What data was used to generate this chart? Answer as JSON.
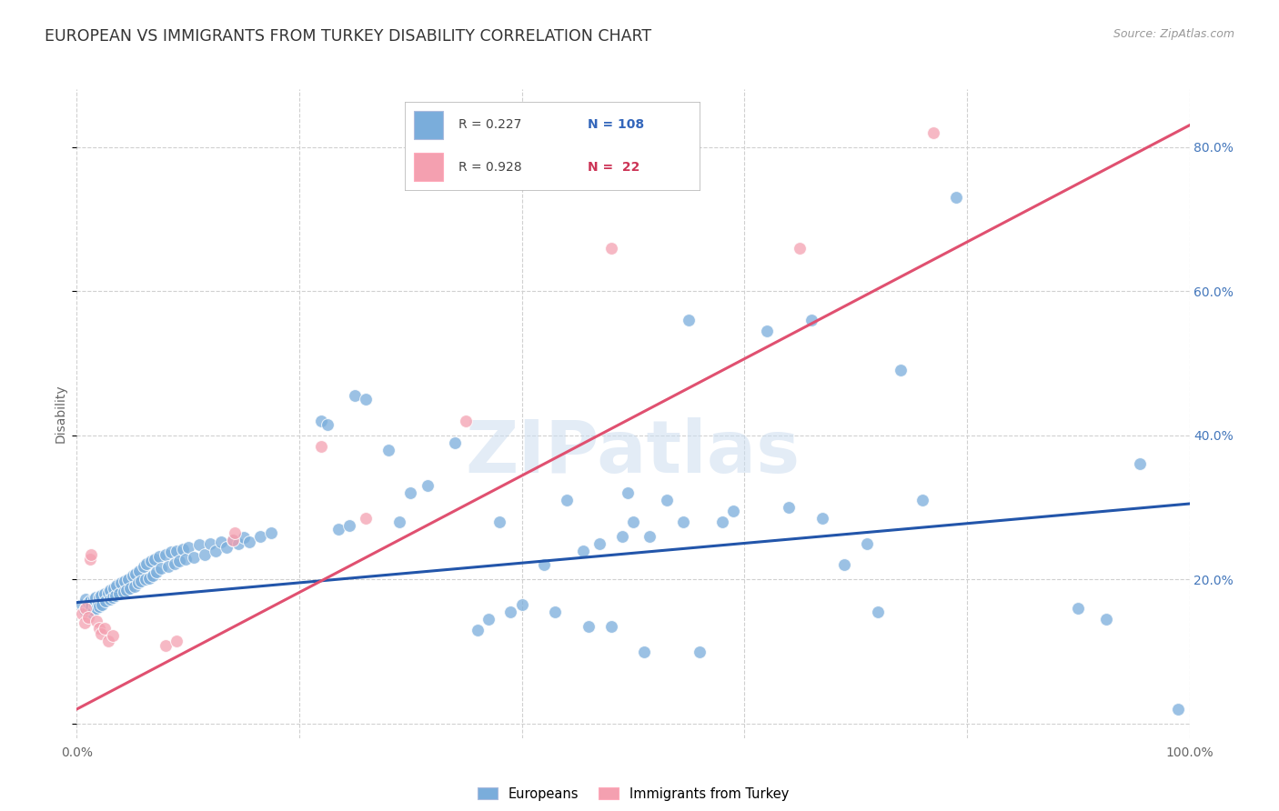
{
  "title": "EUROPEAN VS IMMIGRANTS FROM TURKEY DISABILITY CORRELATION CHART",
  "source": "Source: ZipAtlas.com",
  "ylabel": "Disability",
  "ytick_values": [
    0.0,
    0.2,
    0.4,
    0.6,
    0.8
  ],
  "ytick_labels": [
    "",
    "20.0%",
    "40.0%",
    "60.0%",
    "80.0%"
  ],
  "xlim": [
    0.0,
    1.0
  ],
  "ylim": [
    -0.02,
    0.88
  ],
  "background_color": "#ffffff",
  "grid_color": "#d0d0d0",
  "watermark_text": "ZIPatlas",
  "blue_color": "#7aaddb",
  "pink_color": "#f4a0b0",
  "blue_line_color": "#2255aa",
  "pink_line_color": "#e05070",
  "title_fontsize": 12.5,
  "axis_label_fontsize": 10,
  "tick_fontsize": 10,
  "source_fontsize": 9,
  "blue_line_x": [
    0.0,
    1.0
  ],
  "blue_line_y": [
    0.168,
    0.305
  ],
  "pink_line_x": [
    0.0,
    1.0
  ],
  "pink_line_y": [
    0.02,
    0.83
  ],
  "blue_scatter": [
    [
      0.005,
      0.165
    ],
    [
      0.007,
      0.158
    ],
    [
      0.008,
      0.172
    ],
    [
      0.01,
      0.16
    ],
    [
      0.01,
      0.168
    ],
    [
      0.012,
      0.155
    ],
    [
      0.012,
      0.17
    ],
    [
      0.013,
      0.162
    ],
    [
      0.015,
      0.158
    ],
    [
      0.015,
      0.172
    ],
    [
      0.016,
      0.165
    ],
    [
      0.017,
      0.175
    ],
    [
      0.018,
      0.16
    ],
    [
      0.019,
      0.168
    ],
    [
      0.02,
      0.175
    ],
    [
      0.02,
      0.162
    ],
    [
      0.022,
      0.178
    ],
    [
      0.023,
      0.165
    ],
    [
      0.025,
      0.18
    ],
    [
      0.026,
      0.17
    ],
    [
      0.028,
      0.182
    ],
    [
      0.03,
      0.172
    ],
    [
      0.03,
      0.185
    ],
    [
      0.032,
      0.175
    ],
    [
      0.033,
      0.188
    ],
    [
      0.035,
      0.178
    ],
    [
      0.036,
      0.192
    ],
    [
      0.038,
      0.18
    ],
    [
      0.04,
      0.195
    ],
    [
      0.042,
      0.183
    ],
    [
      0.043,
      0.198
    ],
    [
      0.045,
      0.185
    ],
    [
      0.046,
      0.2
    ],
    [
      0.048,
      0.188
    ],
    [
      0.05,
      0.205
    ],
    [
      0.052,
      0.19
    ],
    [
      0.053,
      0.208
    ],
    [
      0.055,
      0.195
    ],
    [
      0.056,
      0.212
    ],
    [
      0.058,
      0.198
    ],
    [
      0.06,
      0.218
    ],
    [
      0.062,
      0.2
    ],
    [
      0.063,
      0.222
    ],
    [
      0.065,
      0.202
    ],
    [
      0.067,
      0.225
    ],
    [
      0.068,
      0.205
    ],
    [
      0.07,
      0.228
    ],
    [
      0.072,
      0.21
    ],
    [
      0.074,
      0.232
    ],
    [
      0.076,
      0.215
    ],
    [
      0.08,
      0.235
    ],
    [
      0.082,
      0.218
    ],
    [
      0.085,
      0.238
    ],
    [
      0.088,
      0.222
    ],
    [
      0.09,
      0.24
    ],
    [
      0.092,
      0.225
    ],
    [
      0.095,
      0.242
    ],
    [
      0.098,
      0.228
    ],
    [
      0.1,
      0.245
    ],
    [
      0.105,
      0.23
    ],
    [
      0.11,
      0.248
    ],
    [
      0.115,
      0.235
    ],
    [
      0.12,
      0.25
    ],
    [
      0.125,
      0.24
    ],
    [
      0.13,
      0.252
    ],
    [
      0.135,
      0.245
    ],
    [
      0.14,
      0.255
    ],
    [
      0.145,
      0.25
    ],
    [
      0.15,
      0.258
    ],
    [
      0.155,
      0.252
    ],
    [
      0.165,
      0.26
    ],
    [
      0.175,
      0.265
    ],
    [
      0.22,
      0.42
    ],
    [
      0.225,
      0.415
    ],
    [
      0.235,
      0.27
    ],
    [
      0.245,
      0.275
    ],
    [
      0.25,
      0.455
    ],
    [
      0.26,
      0.45
    ],
    [
      0.28,
      0.38
    ],
    [
      0.29,
      0.28
    ],
    [
      0.3,
      0.32
    ],
    [
      0.315,
      0.33
    ],
    [
      0.34,
      0.39
    ],
    [
      0.36,
      0.13
    ],
    [
      0.37,
      0.145
    ],
    [
      0.38,
      0.28
    ],
    [
      0.39,
      0.155
    ],
    [
      0.4,
      0.165
    ],
    [
      0.42,
      0.22
    ],
    [
      0.43,
      0.155
    ],
    [
      0.44,
      0.31
    ],
    [
      0.455,
      0.24
    ],
    [
      0.46,
      0.135
    ],
    [
      0.47,
      0.25
    ],
    [
      0.48,
      0.135
    ],
    [
      0.49,
      0.26
    ],
    [
      0.495,
      0.32
    ],
    [
      0.5,
      0.28
    ],
    [
      0.51,
      0.1
    ],
    [
      0.515,
      0.26
    ],
    [
      0.53,
      0.31
    ],
    [
      0.545,
      0.28
    ],
    [
      0.55,
      0.56
    ],
    [
      0.56,
      0.1
    ],
    [
      0.58,
      0.28
    ],
    [
      0.59,
      0.295
    ],
    [
      0.62,
      0.545
    ],
    [
      0.64,
      0.3
    ],
    [
      0.66,
      0.56
    ],
    [
      0.67,
      0.285
    ],
    [
      0.69,
      0.22
    ],
    [
      0.71,
      0.25
    ],
    [
      0.72,
      0.155
    ],
    [
      0.74,
      0.49
    ],
    [
      0.76,
      0.31
    ],
    [
      0.79,
      0.73
    ],
    [
      0.9,
      0.16
    ],
    [
      0.925,
      0.145
    ],
    [
      0.955,
      0.36
    ],
    [
      0.99,
      0.02
    ]
  ],
  "pink_scatter": [
    [
      0.005,
      0.152
    ],
    [
      0.007,
      0.14
    ],
    [
      0.008,
      0.16
    ],
    [
      0.01,
      0.148
    ],
    [
      0.012,
      0.228
    ],
    [
      0.013,
      0.235
    ],
    [
      0.018,
      0.142
    ],
    [
      0.02,
      0.132
    ],
    [
      0.022,
      0.125
    ],
    [
      0.025,
      0.132
    ],
    [
      0.028,
      0.115
    ],
    [
      0.032,
      0.122
    ],
    [
      0.08,
      0.108
    ],
    [
      0.09,
      0.115
    ],
    [
      0.14,
      0.255
    ],
    [
      0.142,
      0.265
    ],
    [
      0.22,
      0.385
    ],
    [
      0.26,
      0.285
    ],
    [
      0.35,
      0.42
    ],
    [
      0.48,
      0.66
    ],
    [
      0.65,
      0.66
    ],
    [
      0.77,
      0.82
    ]
  ]
}
